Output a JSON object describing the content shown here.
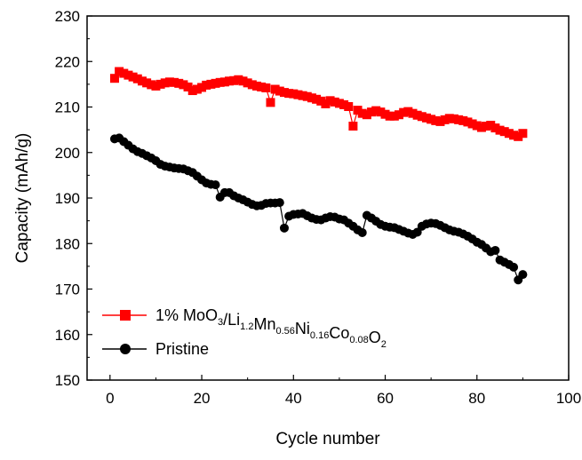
{
  "chart_data": {
    "type": "scatter",
    "xlabel": "Cycle number",
    "ylabel": "Capacity (mAh/g)",
    "xlim": [
      -5,
      100
    ],
    "ylim": [
      150,
      230
    ],
    "xticks": [
      0,
      20,
      40,
      60,
      80,
      100
    ],
    "yticks": [
      150,
      160,
      170,
      180,
      190,
      200,
      210,
      220,
      230
    ],
    "legend_placement": "bottom-left",
    "series": [
      {
        "name_parts": [
          {
            "text": "1% MoO",
            "sub": false
          },
          {
            "text": "3",
            "sub": true
          },
          {
            "text": "/Li",
            "sub": false
          },
          {
            "text": "1.2",
            "sub": true
          },
          {
            "text": "Mn",
            "sub": false
          },
          {
            "text": "0.56",
            "sub": true
          },
          {
            "text": "Ni",
            "sub": false
          },
          {
            "text": "0.16",
            "sub": true
          },
          {
            "text": "Co",
            "sub": false
          },
          {
            "text": "0.08",
            "sub": true
          },
          {
            "text": "O",
            "sub": false
          },
          {
            "text": "2",
            "sub": true
          }
        ],
        "color": "#ff0000",
        "marker": "square",
        "x": [
          1,
          2,
          3,
          4,
          5,
          6,
          7,
          8,
          9,
          10,
          11,
          12,
          13,
          14,
          15,
          16,
          17,
          18,
          19,
          20,
          21,
          22,
          23,
          24,
          25,
          26,
          27,
          28,
          29,
          30,
          31,
          32,
          33,
          34,
          35,
          36,
          37,
          38,
          39,
          40,
          41,
          42,
          43,
          44,
          45,
          46,
          47,
          48,
          49,
          50,
          51,
          52,
          53,
          54,
          55,
          56,
          57,
          58,
          59,
          60,
          61,
          62,
          63,
          64,
          65,
          66,
          67,
          68,
          69,
          70,
          71,
          72,
          73,
          74,
          75,
          76,
          77,
          78,
          79,
          80,
          81,
          82,
          83,
          84,
          85,
          86,
          87,
          88,
          89,
          90
        ],
        "y": [
          216.3,
          217.8,
          217.4,
          217.0,
          216.6,
          216.2,
          215.7,
          215.3,
          214.9,
          214.6,
          215.0,
          215.3,
          215.5,
          215.4,
          215.2,
          214.9,
          214.4,
          213.6,
          213.9,
          214.3,
          214.8,
          215.0,
          215.2,
          215.4,
          215.5,
          215.7,
          215.8,
          216.0,
          215.7,
          215.3,
          214.9,
          214.6,
          214.4,
          214.2,
          211.0,
          213.9,
          213.5,
          213.2,
          213.0,
          212.9,
          212.7,
          212.5,
          212.3,
          212.0,
          211.7,
          211.3,
          210.7,
          211.4,
          211.1,
          210.8,
          210.5,
          210.1,
          205.8,
          209.3,
          208.6,
          208.3,
          208.9,
          209.2,
          208.9,
          208.4,
          208.0,
          208.0,
          208.3,
          208.8,
          209.0,
          208.6,
          208.2,
          207.9,
          207.6,
          207.3,
          207.0,
          206.8,
          207.2,
          207.5,
          207.4,
          207.2,
          207.0,
          206.7,
          206.3,
          205.9,
          205.5,
          205.8,
          206.0,
          205.4,
          204.9,
          204.6,
          204.2,
          203.8,
          203.5,
          204.2
        ]
      },
      {
        "name": "Pristine",
        "color": "#000000",
        "marker": "circle",
        "x": [
          1,
          2,
          3,
          4,
          5,
          6,
          7,
          8,
          9,
          10,
          11,
          12,
          13,
          14,
          15,
          16,
          17,
          18,
          19,
          20,
          21,
          22,
          23,
          24,
          25,
          26,
          27,
          28,
          29,
          30,
          31,
          32,
          33,
          34,
          35,
          36,
          37,
          38,
          39,
          40,
          41,
          42,
          43,
          44,
          45,
          46,
          47,
          48,
          49,
          50,
          51,
          52,
          53,
          54,
          55,
          56,
          57,
          58,
          59,
          60,
          61,
          62,
          63,
          64,
          65,
          66,
          67,
          68,
          69,
          70,
          71,
          72,
          73,
          74,
          75,
          76,
          77,
          78,
          79,
          80,
          81,
          82,
          83,
          84,
          85,
          86,
          87,
          88,
          89,
          90
        ],
        "y": [
          203.0,
          203.2,
          202.4,
          201.6,
          200.8,
          200.2,
          199.8,
          199.3,
          198.8,
          198.2,
          197.4,
          197.0,
          196.8,
          196.6,
          196.5,
          196.4,
          196.0,
          195.6,
          194.8,
          194.0,
          193.3,
          193.0,
          192.9,
          190.2,
          191.2,
          191.2,
          190.5,
          190.0,
          189.6,
          189.1,
          188.6,
          188.3,
          188.4,
          188.8,
          188.9,
          188.9,
          189.0,
          183.4,
          186.0,
          186.4,
          186.5,
          186.6,
          186.1,
          185.6,
          185.3,
          185.2,
          185.6,
          185.9,
          185.8,
          185.4,
          185.2,
          184.5,
          183.8,
          183.0,
          182.4,
          186.2,
          185.6,
          184.9,
          184.2,
          183.8,
          183.6,
          183.5,
          183.1,
          182.7,
          182.3,
          182.0,
          182.5,
          183.8,
          184.3,
          184.5,
          184.4,
          184.0,
          183.5,
          183.0,
          182.7,
          182.5,
          182.1,
          181.6,
          181.0,
          180.3,
          179.8,
          179.0,
          178.2,
          178.5,
          176.4,
          175.9,
          175.4,
          174.8,
          172.0,
          173.2
        ]
      }
    ]
  }
}
